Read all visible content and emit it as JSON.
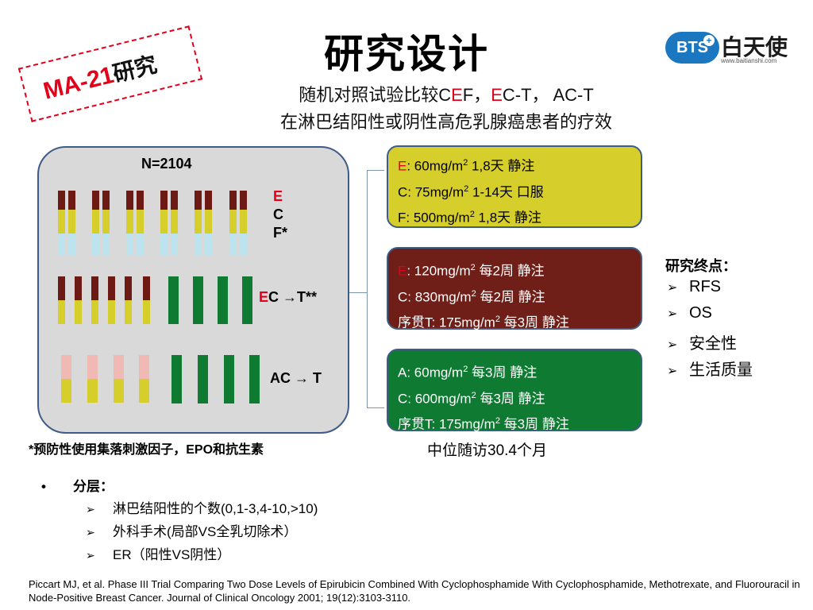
{
  "stamp": {
    "label_latin": "MA-21",
    "label_cn": "研究"
  },
  "title": "研究设计",
  "subtitle": {
    "line1_prefix": "随机对照试验比较C",
    "line1_e1": "E",
    "line1_mid": "F，",
    "line1_e2": "E",
    "line1_suffix": "C-T， AC-T",
    "line2": "在淋巴结阳性或阴性高危乳腺癌患者的疗效"
  },
  "logo": {
    "badge": "BTS",
    "cross": "+",
    "name": "白天使",
    "url": "www.baitianshi.com"
  },
  "design": {
    "n_label": "N=2104",
    "arm_cef": {
      "e": "E",
      "c": "C",
      "f": "F*"
    },
    "arm_ect": {
      "e": "E",
      "rest": "C →T**"
    },
    "arm_act": {
      "label": "AC → T"
    },
    "colors": {
      "epirubicin": "#6d1a14",
      "cyclophosphamide": "#d6ce2a",
      "fluorouracil": "#bde3ef",
      "doxorubicin": "#f1b9b3",
      "paclitaxel": "#0f7a32",
      "panel": "#d9d9d9"
    }
  },
  "regimens": [
    {
      "lines": [
        {
          "drug_e": "E",
          "text": ": 60mg/m",
          "sup": "2",
          "after": " 1,8天 静注"
        },
        {
          "drug_e": "",
          "text": "C: 75mg/m",
          "sup": "2",
          "after": " 1-14天 口服"
        },
        {
          "drug_e": "",
          "text": "F: 500mg/m",
          "sup": "2",
          "after": " 1,8天 静注"
        }
      ]
    },
    {
      "lines": [
        {
          "drug_e": "E",
          "text": ": 120mg/m",
          "sup": "2",
          "after": " 每2周 静注"
        },
        {
          "drug_e": "",
          "text": "C: 830mg/m",
          "sup": "2",
          "after": " 每2周 静注"
        },
        {
          "drug_e": "",
          "text": "序贯T: 175mg/m",
          "sup": "2",
          "after": " 每3周 静注"
        }
      ]
    },
    {
      "lines": [
        {
          "drug_e": "",
          "text": "A: 60mg/m",
          "sup": "2",
          "after": " 每3周 静注"
        },
        {
          "drug_e": "",
          "text": "C: 600mg/m",
          "sup": "2",
          "after": " 每3周 静注"
        },
        {
          "drug_e": "",
          "text": "序贯T: 175mg/m",
          "sup": "2",
          "after": " 每3周 静注"
        }
      ]
    }
  ],
  "endpoints": {
    "title": "研究终点：",
    "items": [
      "RFS",
      "OS",
      "安全性",
      "生活质量"
    ]
  },
  "footnote": "*预防性使用集落刺激因子，EPO和抗生素",
  "followup": "中位随访30.4个月",
  "stratification": {
    "bullet": "•",
    "title": "分层：",
    "items": [
      "淋巴结阳性的个数(0,1-3,4-10,>10)",
      "外科手术(局部VS全乳切除术）",
      "ER（阳性VS阴性）"
    ]
  },
  "reference": "Piccart MJ, et al. Phase III Trial Comparing Two Dose Levels of Epirubicin Combined With Cyclophosphamide With Cyclophosphamide, Methotrexate, and Fluorouracil in Node-Positive Breast Cancer. Journal of Clinical Oncology 2001; 19(12):3103-3110."
}
